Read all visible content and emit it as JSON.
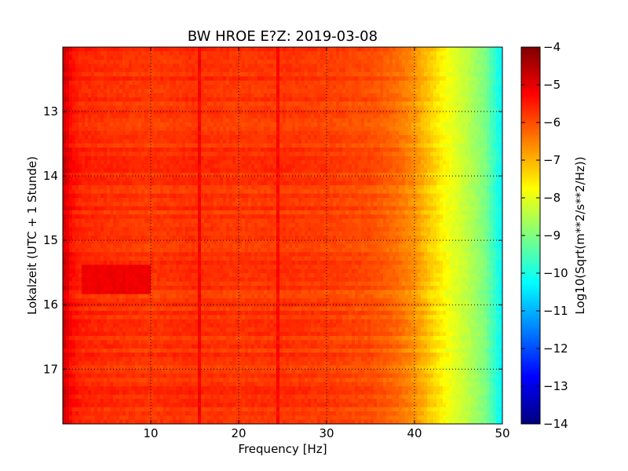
{
  "chart_data": {
    "type": "heatmap",
    "title": "BW HROE E?Z: 2019-03-08",
    "xlabel": "Frequency [Hz]",
    "ylabel": "Lokalzeit (UTC + 1 Stunde)",
    "xlim": [
      0,
      50
    ],
    "ylim": [
      17.85,
      12.0
    ],
    "x_ticks": [
      10,
      20,
      30,
      40,
      50
    ],
    "y_ticks": [
      13,
      14,
      15,
      16,
      17
    ],
    "grid": true,
    "colormap": "jet",
    "colorbar": {
      "label": "Log10(Sqrt(m**2/s**2/Hz))",
      "range": [
        -14,
        -4
      ],
      "ticks": [
        -4,
        -5,
        -6,
        -7,
        -8,
        -9,
        -10,
        -11,
        -12,
        -13,
        -14
      ]
    },
    "spectral_profile": {
      "frequency_hz": [
        0,
        0.5,
        1,
        2,
        5,
        10,
        15,
        20,
        25,
        30,
        35,
        38,
        40,
        42,
        44,
        46,
        48,
        49.5,
        50
      ],
      "log10_amplitude": [
        -4.8,
        -5.0,
        -5.4,
        -5.6,
        -5.7,
        -5.8,
        -5.7,
        -5.8,
        -5.75,
        -5.85,
        -6.0,
        -6.3,
        -6.7,
        -7.3,
        -7.9,
        -8.4,
        -9.0,
        -10.0,
        -10.3
      ]
    },
    "features": [
      {
        "label": "",
        "time_range": [
          15.4,
          15.85
        ],
        "frequency_range": [
          2,
          10
        ],
        "log10_amplitude": -5.1
      },
      {
        "label": "",
        "frequency_hz": 15.5,
        "log10_amplitude": -5.2
      },
      {
        "label": "",
        "frequency_hz": 24.5,
        "log10_amplitude": -5.3
      }
    ]
  }
}
